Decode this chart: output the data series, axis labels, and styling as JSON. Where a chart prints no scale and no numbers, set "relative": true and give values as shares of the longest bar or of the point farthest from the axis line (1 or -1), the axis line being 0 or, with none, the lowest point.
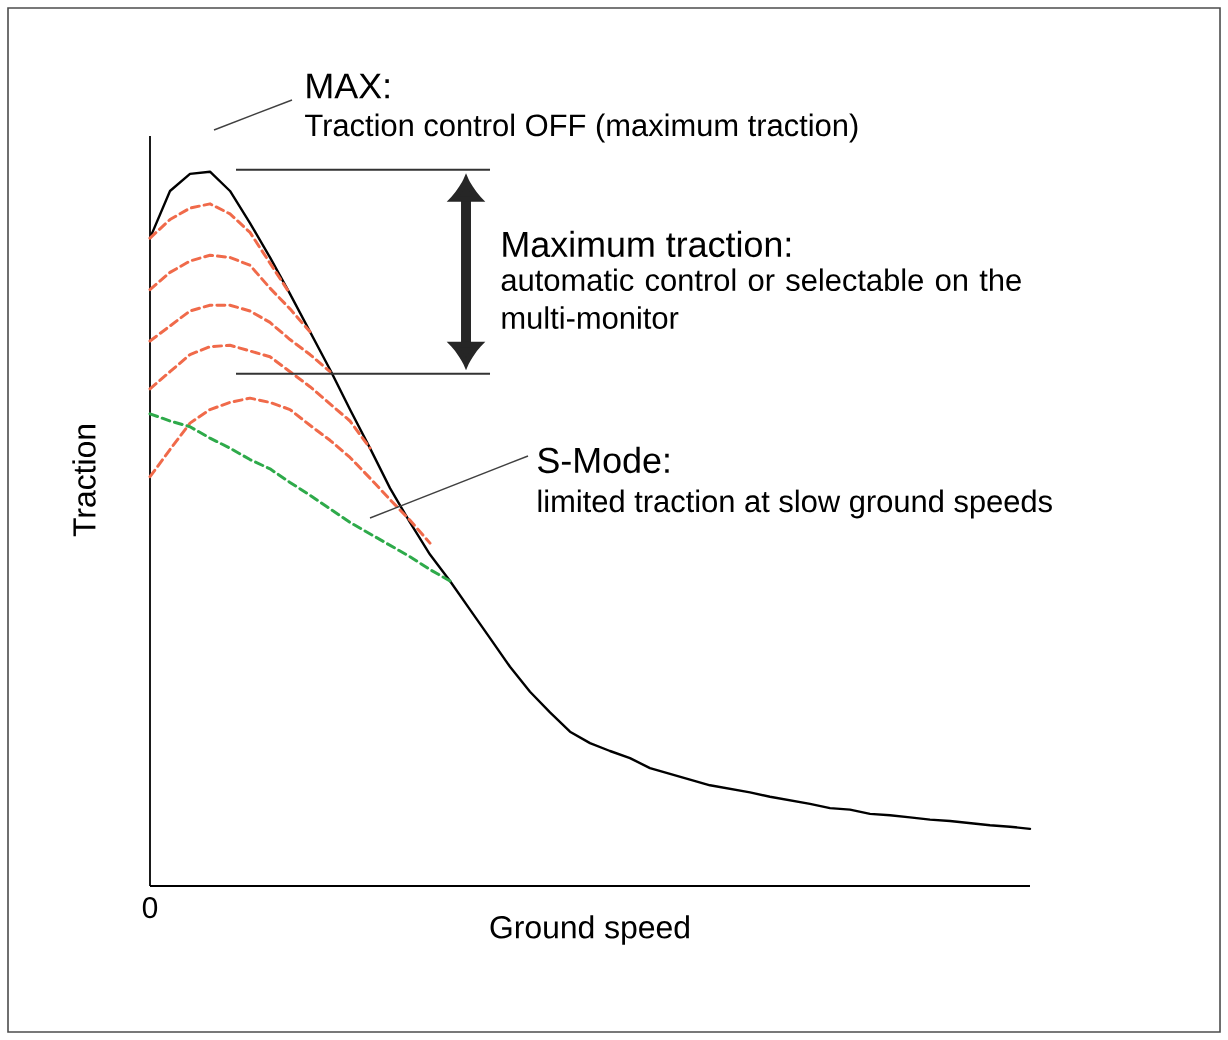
{
  "chart_data": {
    "type": "line",
    "relative": true,
    "xlabel": "Ground speed",
    "ylabel": "Traction",
    "marker": "none",
    "categories": [
      null,
      null,
      null,
      null,
      null,
      null,
      null,
      null,
      null,
      null,
      null,
      null,
      null,
      null,
      null,
      null,
      null,
      null,
      null,
      null,
      null,
      null,
      null,
      null,
      null,
      null,
      null,
      null,
      null,
      null,
      null,
      null,
      null,
      null,
      null,
      null,
      null,
      null,
      null,
      null,
      null,
      null,
      null,
      null,
      null
    ],
    "series": [
      {
        "color": "#000000",
        "line_style": "solid",
        "values": [
          0.907,
          0.973,
          0.997,
          1.0,
          0.973,
          0.928,
          0.88,
          0.829,
          0.776,
          0.723,
          0.667,
          0.613,
          0.557,
          0.509,
          0.464,
          0.427,
          0.387,
          0.347,
          0.307,
          0.272,
          0.243,
          0.216,
          0.2,
          0.189,
          0.179,
          0.165,
          0.157,
          0.149,
          0.141,
          0.136,
          0.131,
          0.125,
          0.12,
          0.115,
          0.109,
          0.107,
          0.101,
          0.099,
          0.096,
          0.093,
          0.091,
          0.088,
          0.085,
          0.083,
          0.08
        ]
      },
      {
        "color": "#f06a4a",
        "line_style": "dashed",
        "values": [
          0.907,
          0.933,
          0.949,
          0.955,
          0.941,
          0.915,
          0.872,
          0.829,
          null,
          null,
          null,
          null,
          null,
          null,
          null,
          null,
          null,
          null,
          null,
          null,
          null,
          null,
          null,
          null,
          null,
          null,
          null,
          null,
          null,
          null,
          null,
          null,
          null,
          null,
          null,
          null,
          null,
          null,
          null,
          null,
          null,
          null,
          null,
          null,
          null
        ]
      },
      {
        "color": "#f06a4a",
        "line_style": "dashed",
        "values": [
          0.835,
          0.859,
          0.875,
          0.883,
          0.88,
          0.869,
          0.837,
          0.808,
          0.776,
          null,
          null,
          null,
          null,
          null,
          null,
          null,
          null,
          null,
          null,
          null,
          null,
          null,
          null,
          null,
          null,
          null,
          null,
          null,
          null,
          null,
          null,
          null,
          null,
          null,
          null,
          null,
          null,
          null,
          null,
          null,
          null,
          null,
          null,
          null,
          null
        ]
      },
      {
        "color": "#f06a4a",
        "line_style": "dashed",
        "values": [
          0.763,
          0.784,
          0.805,
          0.813,
          0.813,
          0.805,
          0.789,
          0.765,
          0.744,
          0.72,
          null,
          null,
          null,
          null,
          null,
          null,
          null,
          null,
          null,
          null,
          null,
          null,
          null,
          null,
          null,
          null,
          null,
          null,
          null,
          null,
          null,
          null,
          null,
          null,
          null,
          null,
          null,
          null,
          null,
          null,
          null,
          null,
          null,
          null,
          null
        ]
      },
      {
        "color": "#f06a4a",
        "line_style": "dashed",
        "values": [
          0.696,
          0.72,
          0.744,
          0.755,
          0.757,
          0.749,
          0.741,
          0.72,
          0.699,
          0.675,
          0.651,
          0.613,
          null,
          null,
          null,
          null,
          null,
          null,
          null,
          null,
          null,
          null,
          null,
          null,
          null,
          null,
          null,
          null,
          null,
          null,
          null,
          null,
          null,
          null,
          null,
          null,
          null,
          null,
          null,
          null,
          null,
          null,
          null,
          null,
          null
        ]
      },
      {
        "color": "#f06a4a",
        "line_style": "dashed",
        "values": [
          0.573,
          0.611,
          0.648,
          0.667,
          0.677,
          0.683,
          0.677,
          0.667,
          0.645,
          0.624,
          0.6,
          0.571,
          0.541,
          0.512,
          0.48,
          null,
          null,
          null,
          null,
          null,
          null,
          null,
          null,
          null,
          null,
          null,
          null,
          null,
          null,
          null,
          null,
          null,
          null,
          null,
          null,
          null,
          null,
          null,
          null,
          null,
          null,
          null,
          null,
          null,
          null
        ]
      },
      {
        "color": "#2eaa4a",
        "line_style": "dashed",
        "values": [
          0.661,
          0.651,
          0.643,
          0.627,
          0.613,
          0.597,
          0.584,
          0.565,
          0.547,
          0.528,
          0.509,
          0.493,
          0.477,
          0.461,
          0.443,
          0.427,
          null,
          null,
          null,
          null,
          null,
          null,
          null,
          null,
          null,
          null,
          null,
          null,
          null,
          null,
          null,
          null,
          null,
          null,
          null,
          null,
          null,
          null,
          null,
          null,
          null,
          null,
          null,
          null,
          null
        ]
      }
    ],
    "annotations": [
      "MAX:",
      "Traction control OFF (maximum traction)",
      "Maximum traction:",
      "automatic control or selectable on the multi-monitor",
      "S-Mode:",
      "limited traction at slow ground speeds",
      "0"
    ]
  }
}
